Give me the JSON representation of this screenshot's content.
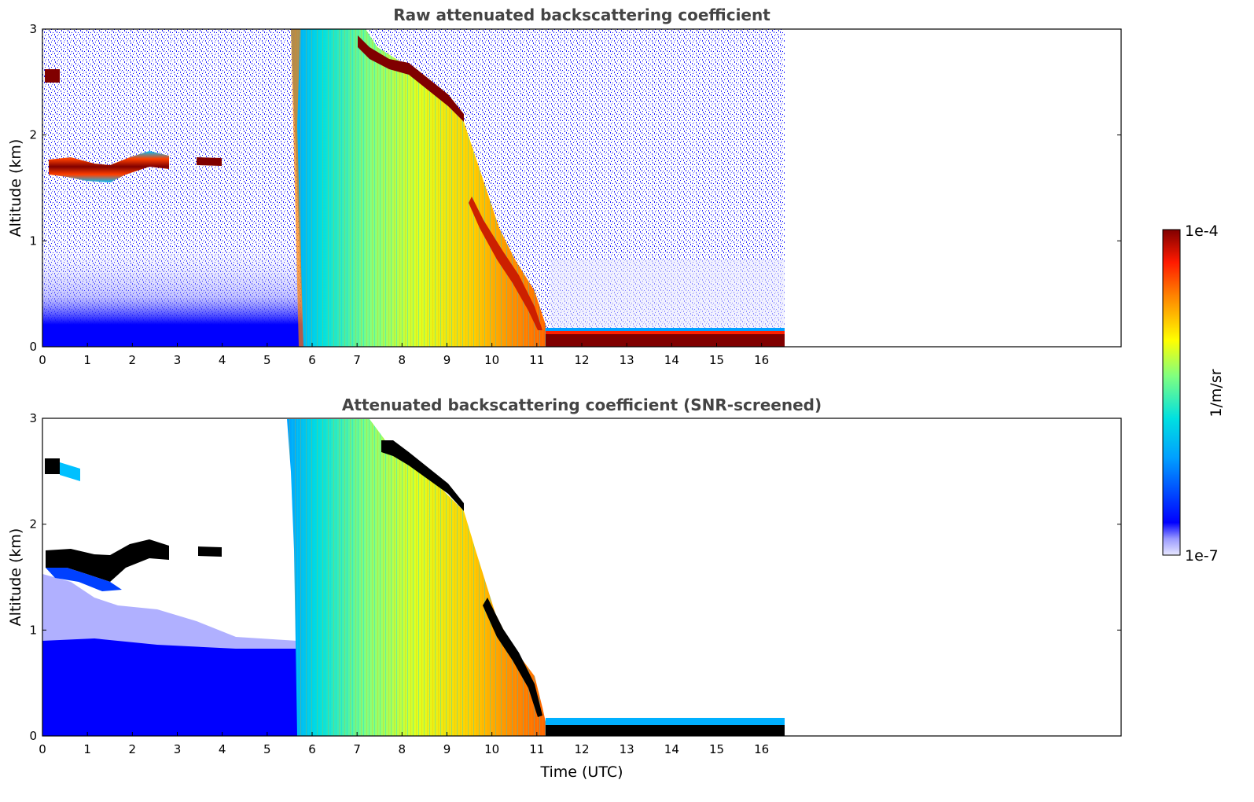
{
  "chart_data": [
    {
      "type": "heatmap",
      "title": "Raw attenuated backscattering coefficient",
      "xlabel": "",
      "ylabel": "Altitude (km)",
      "xlim": [
        0,
        24
      ],
      "ylim": [
        0,
        3
      ],
      "xticks": [
        "0",
        "1",
        "2",
        "3",
        "4",
        "5",
        "6",
        "7",
        "8",
        "9",
        "10",
        "11",
        "12",
        "13",
        "14",
        "15",
        "16"
      ],
      "yticks": [
        "0",
        "1",
        "2",
        "3"
      ],
      "data_extent_hours": [
        0,
        16.5
      ],
      "features": [
        {
          "t_start": 0.0,
          "t_end": 0.4,
          "alt_km": 2.58,
          "level": "high"
        },
        {
          "t_start": 0.5,
          "t_end": 2.9,
          "alt_km": 1.68,
          "level": "high"
        },
        {
          "t_start": 3.4,
          "t_end": 4.0,
          "alt_km": 1.75,
          "level": "high"
        },
        {
          "t_start": 5.7,
          "t_end": 9.4,
          "alt_top_km": 3.0,
          "level": "medium"
        },
        {
          "t_start": 9.4,
          "t_end": 11.2,
          "alt_top_km": 2.0,
          "level": "medium-high"
        },
        {
          "t_start": 11.2,
          "t_end": 16.5,
          "alt_km": 0.1,
          "level": "high"
        }
      ]
    },
    {
      "type": "heatmap",
      "title": "Attenuated backscattering coefficient (SNR-screened)",
      "xlabel": "Time (UTC)",
      "ylabel": "Altitude (km)",
      "xlim": [
        0,
        24
      ],
      "ylim": [
        0,
        3
      ],
      "xticks": [
        "0",
        "1",
        "2",
        "3",
        "4",
        "5",
        "6",
        "7",
        "8",
        "9",
        "10",
        "11",
        "12",
        "13",
        "14",
        "15",
        "16"
      ],
      "yticks": [
        "0",
        "1",
        "2",
        "3"
      ],
      "data_extent_hours": [
        0,
        16.5
      ]
    }
  ],
  "colorbar": {
    "label": "1/m/sr",
    "max_label": "1e-4",
    "min_label": "1e-7",
    "scale": "log",
    "colormap": "jet",
    "range": [
      1e-07,
      0.0001
    ]
  },
  "colors": {
    "low_background": "#0000ff",
    "high": "#800000",
    "saturated": "#000000"
  }
}
